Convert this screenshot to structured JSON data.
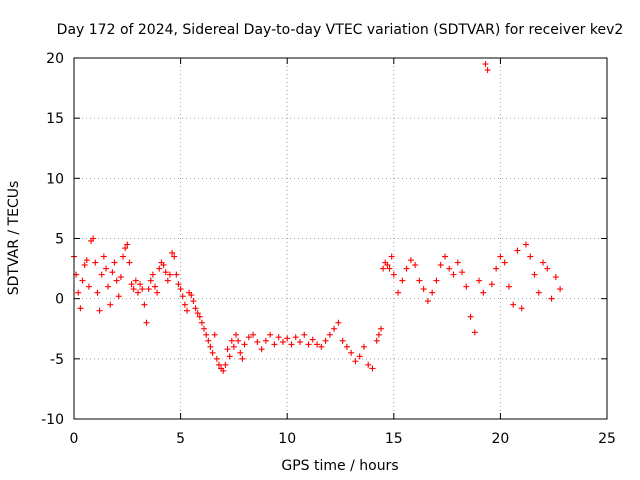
{
  "chart_data": {
    "type": "scatter",
    "title": "Day 172 of 2024, Sidereal Day-to-day VTEC variation (SDTVAR) for receiver kev2",
    "xlabel": "GPS time / hours",
    "ylabel": "SDTVAR / TECUs",
    "xlim": [
      0,
      25
    ],
    "ylim": [
      -10,
      20
    ],
    "xticks": [
      0,
      5,
      10,
      15,
      20,
      25
    ],
    "yticks": [
      -10,
      -5,
      0,
      5,
      10,
      15,
      20
    ],
    "xtick_labels": [
      "0",
      "5",
      "10",
      "15",
      "20",
      "25"
    ],
    "ytick_labels": [
      "-10",
      "-5",
      "0",
      "5",
      "10",
      "15",
      "20"
    ],
    "grid": true,
    "marker": "+",
    "color": "#ff0000",
    "series": [
      {
        "name": "SDTVAR",
        "points": [
          [
            0.0,
            3.5
          ],
          [
            0.1,
            2.0
          ],
          [
            0.2,
            0.5
          ],
          [
            0.3,
            -0.8
          ],
          [
            0.4,
            1.5
          ],
          [
            0.5,
            2.8
          ],
          [
            0.6,
            3.2
          ],
          [
            0.7,
            1.0
          ],
          [
            0.8,
            4.8
          ],
          [
            0.9,
            5.0
          ],
          [
            1.0,
            3.0
          ],
          [
            1.1,
            0.5
          ],
          [
            1.2,
            -1.0
          ],
          [
            1.3,
            2.0
          ],
          [
            1.4,
            3.5
          ],
          [
            1.5,
            2.5
          ],
          [
            1.6,
            1.0
          ],
          [
            1.7,
            -0.5
          ],
          [
            1.8,
            2.2
          ],
          [
            1.9,
            3.0
          ],
          [
            2.0,
            1.5
          ],
          [
            2.1,
            0.2
          ],
          [
            2.2,
            1.8
          ],
          [
            2.3,
            3.5
          ],
          [
            2.4,
            4.2
          ],
          [
            2.5,
            4.5
          ],
          [
            2.6,
            3.0
          ],
          [
            2.7,
            1.2
          ],
          [
            2.8,
            0.8
          ],
          [
            2.9,
            1.5
          ],
          [
            3.0,
            0.5
          ],
          [
            3.1,
            1.2
          ],
          [
            3.2,
            0.8
          ],
          [
            3.3,
            -0.5
          ],
          [
            3.4,
            -2.0
          ],
          [
            3.5,
            0.8
          ],
          [
            3.6,
            1.5
          ],
          [
            3.7,
            2.0
          ],
          [
            3.8,
            1.0
          ],
          [
            3.9,
            0.5
          ],
          [
            4.0,
            2.5
          ],
          [
            4.1,
            3.0
          ],
          [
            4.2,
            2.8
          ],
          [
            4.3,
            2.2
          ],
          [
            4.4,
            1.5
          ],
          [
            4.5,
            2.0
          ],
          [
            4.6,
            3.8
          ],
          [
            4.7,
            3.5
          ],
          [
            4.8,
            2.0
          ],
          [
            4.9,
            1.2
          ],
          [
            5.0,
            0.8
          ],
          [
            5.1,
            0.2
          ],
          [
            5.2,
            -0.5
          ],
          [
            5.3,
            -1.0
          ],
          [
            5.4,
            0.5
          ],
          [
            5.5,
            0.3
          ],
          [
            5.6,
            -0.2
          ],
          [
            5.7,
            -0.8
          ],
          [
            5.8,
            -1.2
          ],
          [
            5.9,
            -1.5
          ],
          [
            6.0,
            -2.0
          ],
          [
            6.1,
            -2.5
          ],
          [
            6.2,
            -3.0
          ],
          [
            6.3,
            -3.5
          ],
          [
            6.4,
            -4.0
          ],
          [
            6.5,
            -4.5
          ],
          [
            6.6,
            -3.0
          ],
          [
            6.7,
            -5.0
          ],
          [
            6.8,
            -5.5
          ],
          [
            6.9,
            -5.8
          ],
          [
            7.0,
            -6.0
          ],
          [
            7.1,
            -5.5
          ],
          [
            7.2,
            -4.2
          ],
          [
            7.3,
            -4.8
          ],
          [
            7.4,
            -3.5
          ],
          [
            7.5,
            -4.0
          ],
          [
            7.6,
            -3.0
          ],
          [
            7.7,
            -3.5
          ],
          [
            7.8,
            -4.5
          ],
          [
            7.9,
            -5.0
          ],
          [
            8.0,
            -3.8
          ],
          [
            8.2,
            -3.2
          ],
          [
            8.4,
            -3.0
          ],
          [
            8.6,
            -3.6
          ],
          [
            8.8,
            -4.2
          ],
          [
            9.0,
            -3.5
          ],
          [
            9.2,
            -3.0
          ],
          [
            9.4,
            -3.8
          ],
          [
            9.6,
            -3.2
          ],
          [
            9.8,
            -3.6
          ],
          [
            10.0,
            -3.3
          ],
          [
            10.2,
            -3.8
          ],
          [
            10.4,
            -3.2
          ],
          [
            10.6,
            -3.6
          ],
          [
            10.8,
            -3.0
          ],
          [
            11.0,
            -3.8
          ],
          [
            11.2,
            -3.4
          ],
          [
            11.4,
            -3.8
          ],
          [
            11.6,
            -4.0
          ],
          [
            11.8,
            -3.5
          ],
          [
            12.0,
            -3.0
          ],
          [
            12.2,
            -2.5
          ],
          [
            12.4,
            -2.0
          ],
          [
            12.6,
            -3.5
          ],
          [
            12.8,
            -4.0
          ],
          [
            13.0,
            -4.5
          ],
          [
            13.2,
            -5.2
          ],
          [
            13.4,
            -4.8
          ],
          [
            13.6,
            -4.0
          ],
          [
            13.8,
            -5.5
          ],
          [
            14.0,
            -5.8
          ],
          [
            14.2,
            -3.5
          ],
          [
            14.3,
            -3.0
          ],
          [
            14.4,
            -2.5
          ],
          [
            14.5,
            2.5
          ],
          [
            14.6,
            3.0
          ],
          [
            14.7,
            2.8
          ],
          [
            14.8,
            2.5
          ],
          [
            14.9,
            3.5
          ],
          [
            15.0,
            2.0
          ],
          [
            15.2,
            0.5
          ],
          [
            15.4,
            1.5
          ],
          [
            15.6,
            2.5
          ],
          [
            15.8,
            3.2
          ],
          [
            16.0,
            2.8
          ],
          [
            16.2,
            1.5
          ],
          [
            16.4,
            0.8
          ],
          [
            16.6,
            -0.2
          ],
          [
            16.8,
            0.5
          ],
          [
            17.0,
            1.5
          ],
          [
            17.2,
            2.8
          ],
          [
            17.4,
            3.5
          ],
          [
            17.6,
            2.5
          ],
          [
            17.8,
            2.0
          ],
          [
            18.0,
            3.0
          ],
          [
            18.2,
            2.2
          ],
          [
            18.4,
            1.0
          ],
          [
            18.6,
            -1.5
          ],
          [
            18.8,
            -2.8
          ],
          [
            19.0,
            1.5
          ],
          [
            19.2,
            0.5
          ],
          [
            19.3,
            19.5
          ],
          [
            19.4,
            19.0
          ],
          [
            19.6,
            1.2
          ],
          [
            19.8,
            2.5
          ],
          [
            20.0,
            3.5
          ],
          [
            20.2,
            3.0
          ],
          [
            20.4,
            1.0
          ],
          [
            20.6,
            -0.5
          ],
          [
            20.8,
            4.0
          ],
          [
            21.0,
            -0.8
          ],
          [
            21.2,
            4.5
          ],
          [
            21.4,
            3.5
          ],
          [
            21.6,
            2.0
          ],
          [
            21.8,
            0.5
          ],
          [
            22.0,
            3.0
          ],
          [
            22.2,
            2.5
          ],
          [
            22.4,
            0.0
          ],
          [
            22.6,
            1.8
          ],
          [
            22.8,
            0.8
          ]
        ]
      }
    ]
  }
}
